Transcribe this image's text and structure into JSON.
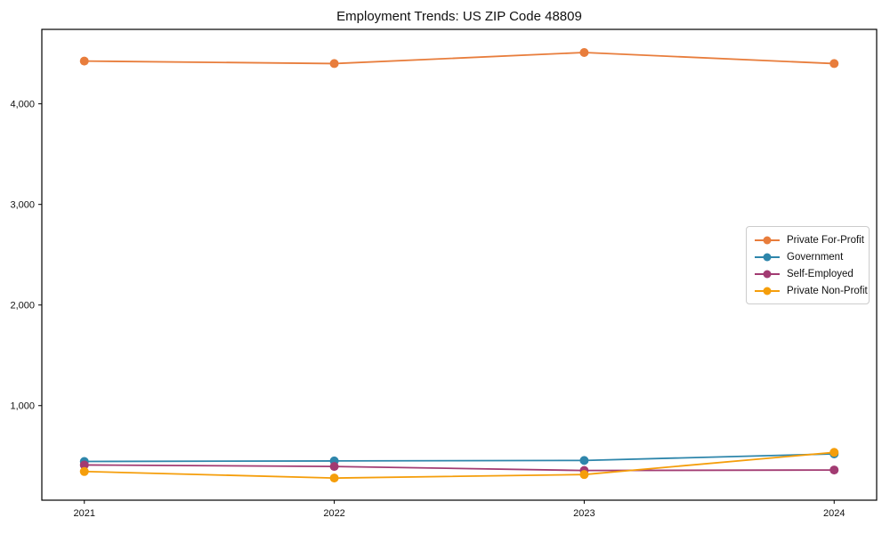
{
  "chart_data": {
    "type": "line",
    "title": "Employment Trends: US ZIP Code 48809",
    "xlabel": "",
    "ylabel": "",
    "x": [
      2021,
      2022,
      2023,
      2024
    ],
    "x_tick_labels": [
      "2021",
      "2022",
      "2023",
      "2024"
    ],
    "y_ticks": [
      1000,
      2000,
      3000,
      4000
    ],
    "y_tick_labels": [
      "1,000",
      "2,000",
      "3,000",
      "4,000"
    ],
    "xlim": [
      2020.83,
      2024.17
    ],
    "ylim": [
      60,
      4740
    ],
    "grid": false,
    "legend_position": "center right",
    "series": [
      {
        "name": "Private For-Profit",
        "color": "#E87D3C",
        "values": [
          4425,
          4400,
          4510,
          4400
        ]
      },
      {
        "name": "Government",
        "color": "#2E86AB",
        "values": [
          445,
          450,
          455,
          520
        ]
      },
      {
        "name": "Self-Employed",
        "color": "#A23B72",
        "values": [
          410,
          395,
          355,
          360
        ]
      },
      {
        "name": "Private Non-Profit",
        "color": "#F59E0B",
        "values": [
          345,
          280,
          315,
          535
        ]
      }
    ],
    "marker": "circle",
    "axis_color": "#000000"
  }
}
